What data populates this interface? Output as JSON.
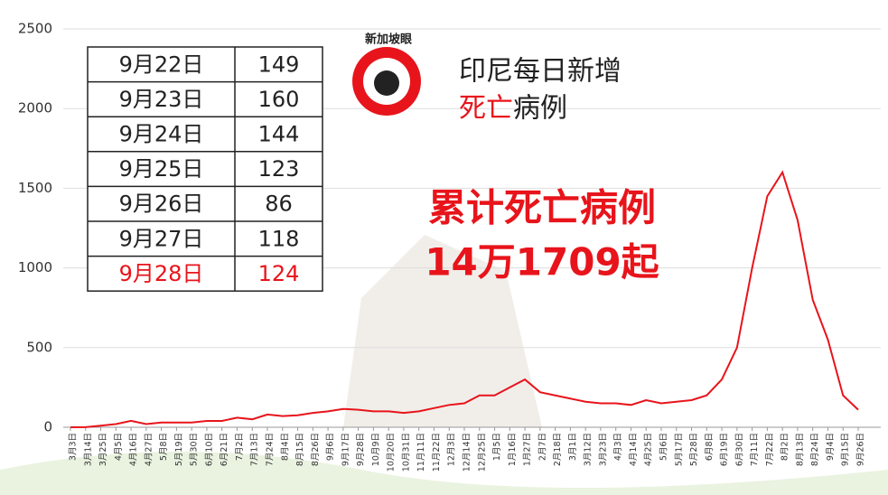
{
  "chart_data": {
    "type": "line",
    "title": "印尼每日新增",
    "subtitle_red": "死亡",
    "subtitle_black": "病例",
    "annotation_line1": "累计死亡病例",
    "annotation_line2": "14万1709起",
    "categories": [
      "3月3日",
      "3月14日",
      "3月25日",
      "4月5日",
      "4月16日",
      "4月27日",
      "5月8日",
      "5月19日",
      "5月30日",
      "6月10日",
      "6月21日",
      "7月2日",
      "7月13日",
      "7月24日",
      "8月4日",
      "8月15日",
      "8月26日",
      "9月6日",
      "9月17日",
      "9月28日",
      "10月9日",
      "10月20日",
      "10月31日",
      "11月11日",
      "11月22日",
      "12月3日",
      "12月14日",
      "12月25日",
      "1月5日",
      "1月16日",
      "1月27日",
      "2月7日",
      "2月18日",
      "3月1日",
      "3月12日",
      "3月23日",
      "4月3日",
      "4月14日",
      "4月25日",
      "5月6日",
      "5月17日",
      "5月28日",
      "6月8日",
      "6月19日",
      "6月30日",
      "7月11日",
      "7月22日",
      "8月2日",
      "8月13日",
      "8月24日",
      "9月4日",
      "9月15日",
      "9月26日"
    ],
    "series": [
      {
        "name": "死亡病例",
        "color": "#e8141b",
        "values": [
          0,
          1,
          10,
          20,
          40,
          20,
          30,
          30,
          30,
          40,
          40,
          60,
          50,
          80,
          70,
          75,
          90,
          100,
          115,
          110,
          100,
          100,
          90,
          100,
          120,
          140,
          150,
          200,
          200,
          250,
          300,
          220,
          200,
          180,
          160,
          150,
          150,
          140,
          170,
          150,
          160,
          170,
          200,
          300,
          500,
          1000,
          1450,
          1600,
          1300,
          800,
          550,
          200,
          110
        ]
      }
    ],
    "ylim": [
      0,
      2500
    ],
    "yticks": [
      0,
      500,
      1000,
      1500,
      2000,
      2500
    ],
    "grid": true
  },
  "table": {
    "rows": [
      [
        "9月22日",
        149
      ],
      [
        "9月23日",
        160
      ],
      [
        "9月24日",
        144
      ],
      [
        "9月25日",
        123
      ],
      [
        "9月26日",
        86
      ],
      [
        "9月27日",
        118
      ],
      [
        "9月28日",
        124
      ]
    ]
  },
  "logo": {
    "text": "新加坡眼"
  }
}
